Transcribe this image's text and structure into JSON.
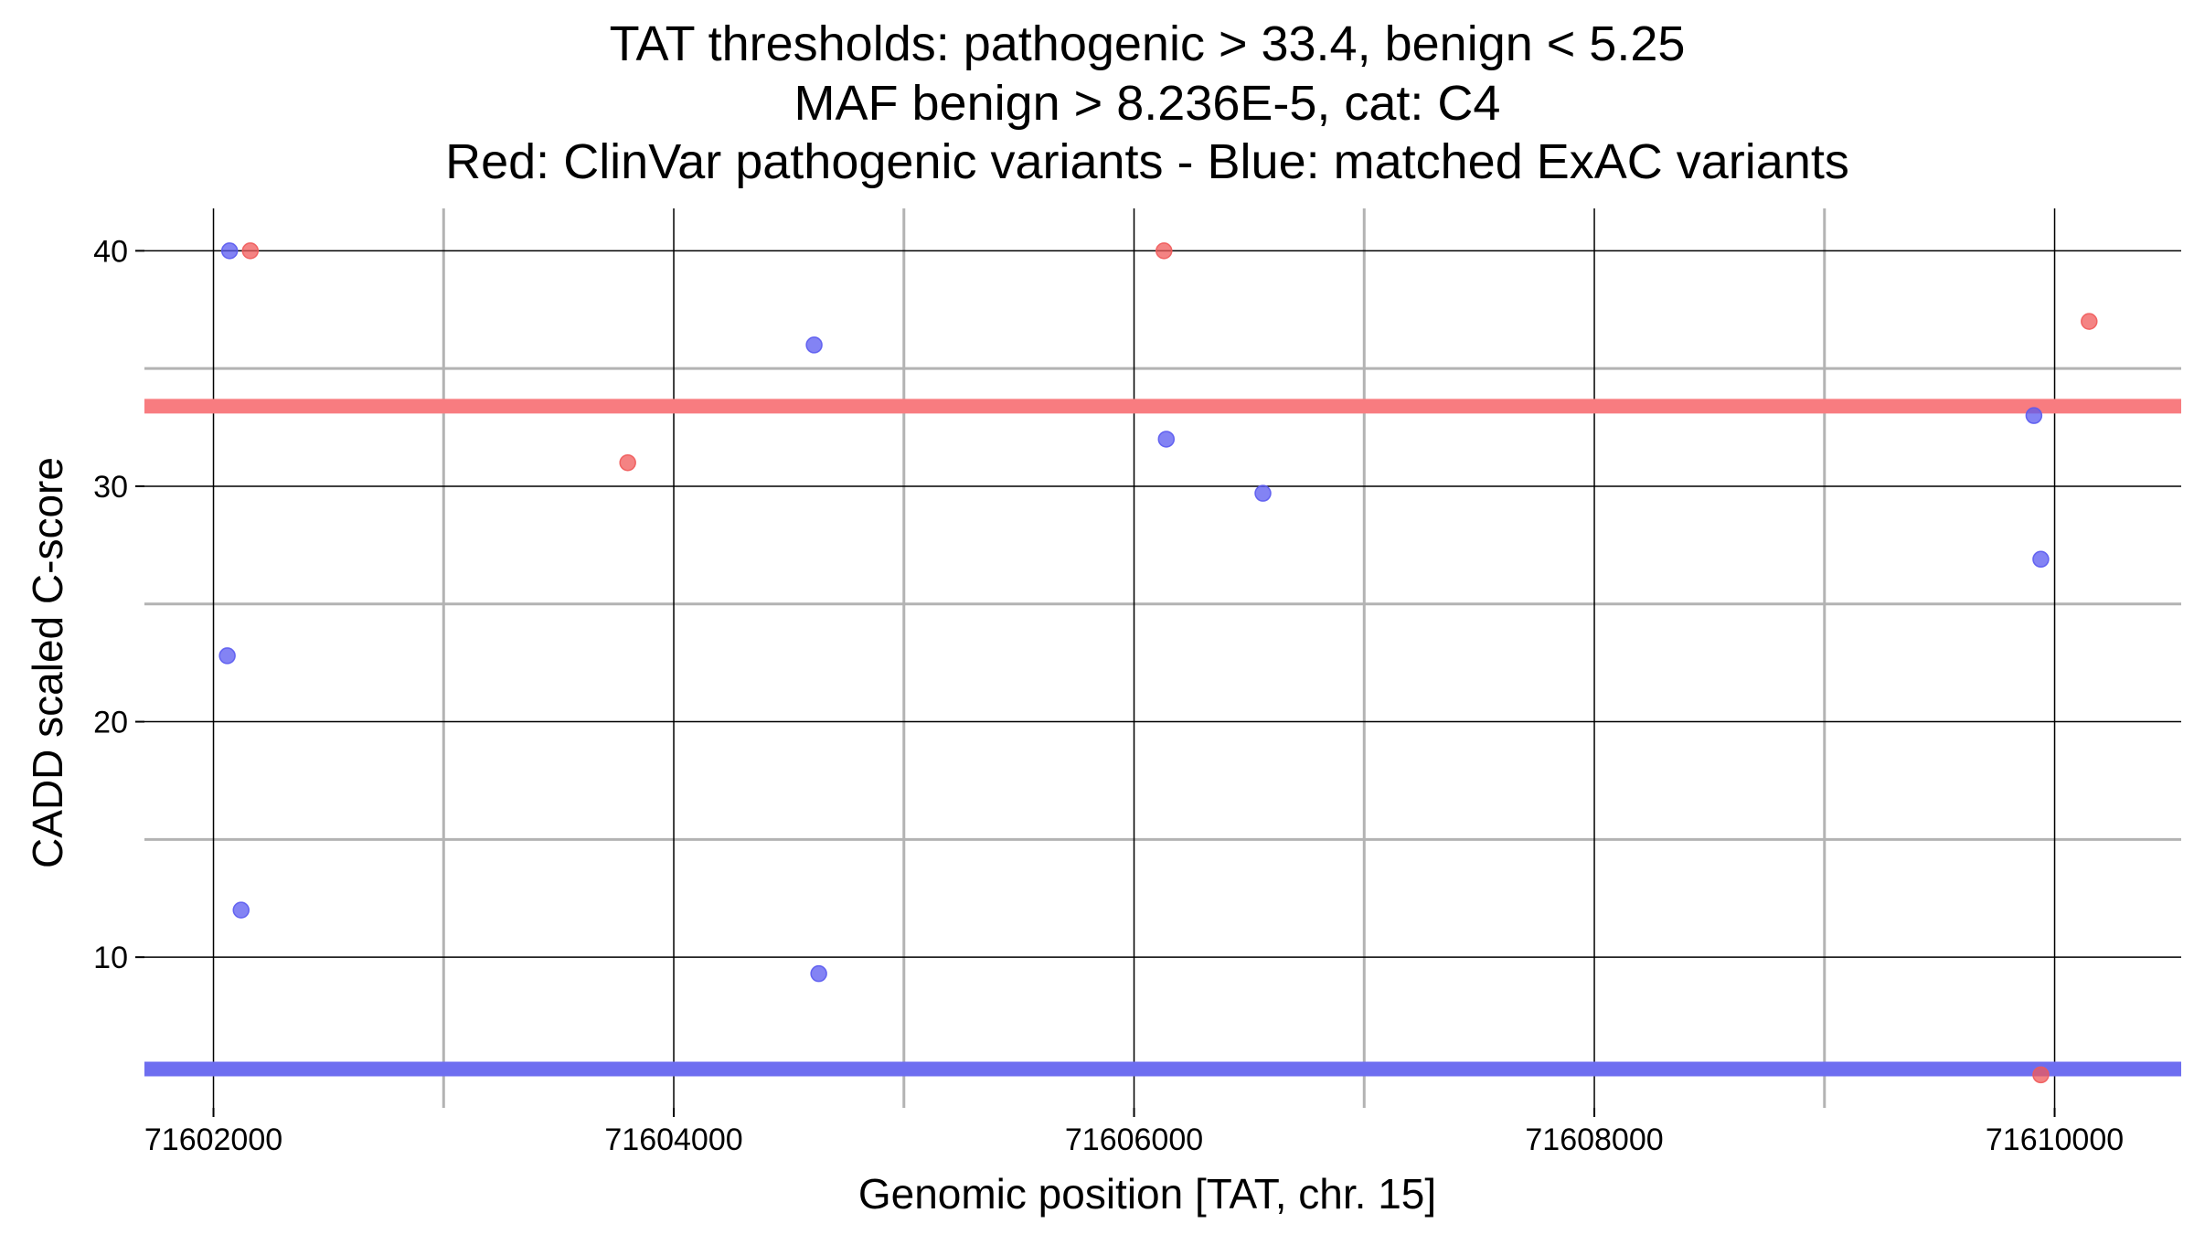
{
  "chart_data": {
    "type": "scatter",
    "title_lines": [
      "TAT thresholds: pathogenic > 33.4, benign < 5.25",
      "MAF benign > 8.236E-5, cat: C4",
      "Red: ClinVar pathogenic variants - Blue: matched ExAC variants"
    ],
    "xlabel": "Genomic position [TAT, chr. 15]",
    "ylabel": "CADD scaled C-score",
    "xlim": [
      71601700,
      71610550
    ],
    "ylim": [
      3.6,
      41.8
    ],
    "x_ticks": [
      71602000,
      71604000,
      71606000,
      71608000,
      71610000
    ],
    "x_tick_labels": [
      "71602000",
      "71604000",
      "71606000",
      "71608000",
      "71610000"
    ],
    "x_minor_gridlines": [
      71603000,
      71605000,
      71607000,
      71609000
    ],
    "y_ticks": [
      10,
      20,
      30,
      40
    ],
    "y_tick_labels": [
      "10",
      "20",
      "30",
      "40"
    ],
    "y_minor_gridlines": [
      15,
      25,
      35
    ],
    "grid": true,
    "thresholds": [
      {
        "name": "pathogenic",
        "value": 33.4,
        "color": "#f87c80"
      },
      {
        "name": "benign",
        "value": 5.25,
        "color": "#6e6ef0"
      }
    ],
    "colors": {
      "pathogenic": "#f05a5a",
      "benign": "#5a5af0",
      "major_grid": "#000000",
      "minor_grid": "#b3b3b3"
    },
    "series": [
      {
        "color_key": "pathogenic",
        "points": [
          {
            "x": 71602160,
            "y": 40.0
          },
          {
            "x": 71603800,
            "y": 31.0
          },
          {
            "x": 71606130,
            "y": 40.0
          },
          {
            "x": 71610150,
            "y": 37.0
          },
          {
            "x": 71609940,
            "y": 5.0
          }
        ]
      },
      {
        "color_key": "benign",
        "points": [
          {
            "x": 71602070,
            "y": 40.0
          },
          {
            "x": 71602060,
            "y": 22.8
          },
          {
            "x": 71602120,
            "y": 12.0
          },
          {
            "x": 71604610,
            "y": 36.0
          },
          {
            "x": 71604630,
            "y": 9.3
          },
          {
            "x": 71606140,
            "y": 32.0
          },
          {
            "x": 71606560,
            "y": 29.7
          },
          {
            "x": 71609910,
            "y": 33.0
          },
          {
            "x": 71609940,
            "y": 26.9
          }
        ]
      }
    ]
  }
}
